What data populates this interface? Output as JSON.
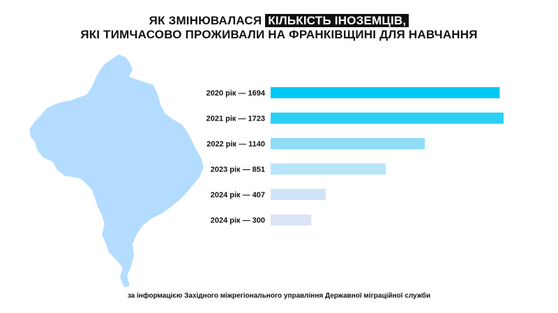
{
  "title": {
    "line1_before": "ЯК ЗМІНЮВАЛАСЯ",
    "line1_highlight": "КІЛЬКІСТЬ ІНОЗЕМЦІВ,",
    "line2": "ЯКІ ТИМЧАСОВО ПРОЖИВАЛИ НА ФРАНКІВЩИНІ ДЛЯ НАВЧАННЯ"
  },
  "source_note": "за інформацією Західного міжрегіонального управління Державної міграційної служби",
  "map": {
    "region_icon": "ivano-frankivsk-oblast-silhouette",
    "color": "#b3dcff"
  },
  "chart_data": {
    "type": "bar",
    "orientation": "horizontal",
    "categories": [
      "2020 рік — 1694",
      "2021 рік — 1723",
      "2022 рік — 1140",
      "2023 рік — 851",
      "2024 рік — 407",
      "2024 рік — 300"
    ],
    "values": [
      1694,
      1723,
      1140,
      851,
      407,
      300
    ],
    "colors": [
      "#00c8f5",
      "#2ad0f5",
      "#8fdcf7",
      "#b8e5f8",
      "#cfe5f7",
      "#dbe3f6"
    ],
    "xlim": [
      0,
      1723
    ],
    "grid": false,
    "legend": "none"
  }
}
